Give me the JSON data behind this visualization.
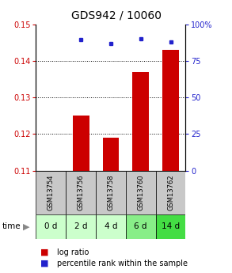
{
  "title": "GDS942 / 10060",
  "categories": [
    "GSM13754",
    "GSM13756",
    "GSM13758",
    "GSM13760",
    "GSM13762"
  ],
  "time_labels": [
    "0 d",
    "2 d",
    "4 d",
    "6 d",
    "14 d"
  ],
  "log_ratio": [
    0.11,
    0.125,
    0.119,
    0.137,
    0.143
  ],
  "percentile": [
    null,
    90.0,
    87.0,
    90.5,
    88.0
  ],
  "ylim_left": [
    0.11,
    0.15
  ],
  "ylim_right": [
    0,
    100
  ],
  "yticks_left": [
    0.11,
    0.12,
    0.13,
    0.14,
    0.15
  ],
  "yticks_right": [
    0,
    25,
    50,
    75,
    100
  ],
  "grid_lines": [
    0.12,
    0.13,
    0.14
  ],
  "bar_color": "#cc0000",
  "dot_color": "#2222cc",
  "bar_width": 0.55,
  "time_row_colors": [
    "#ccffcc",
    "#ccffcc",
    "#ccffcc",
    "#88ee88",
    "#44dd44"
  ],
  "gsm_row_color": "#c8c8c8",
  "legend_bar_label": "log ratio",
  "legend_dot_label": "percentile rank within the sample",
  "title_fontsize": 10,
  "tick_fontsize": 7,
  "legend_fontsize": 7,
  "time_fontsize": 7.5,
  "gsm_fontsize": 6
}
